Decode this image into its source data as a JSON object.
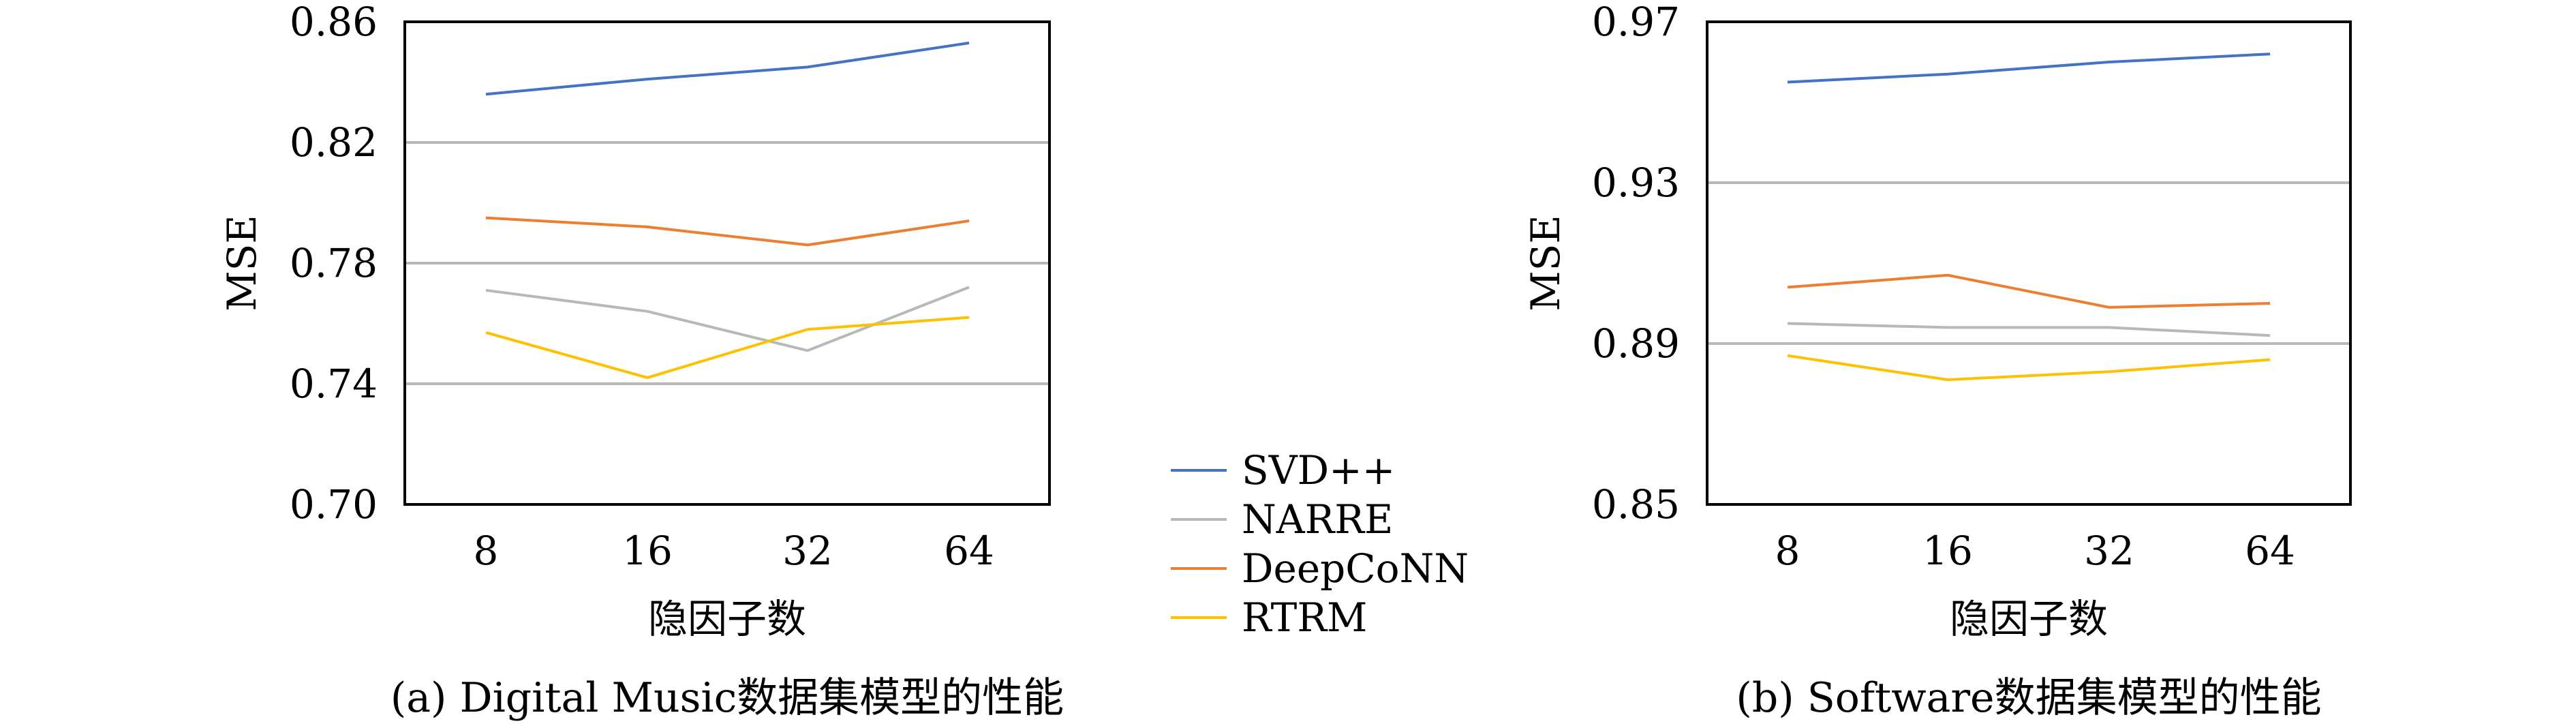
{
  "colors": {
    "svd": "#4472C4",
    "narre": "#B8B8B8",
    "deepconn": "#ED7D31",
    "rtrm": "#FFC000",
    "grid": "#B8B8B8",
    "frame": "#000000"
  },
  "legend": {
    "position": "center-between-charts",
    "items": [
      "SVD++",
      "NARRE",
      "DeepCoNN",
      "RTRM"
    ]
  },
  "chart_data": [
    {
      "type": "line",
      "caption": "(a) Digital Music数据集模型的性能",
      "xlabel": "隐因子数",
      "ylabel": "MSE",
      "categories": [
        "8",
        "16",
        "32",
        "64"
      ],
      "ylim": [
        0.7,
        0.86
      ],
      "yticks": [
        "0.70",
        "0.74",
        "0.78",
        "0.82",
        "0.86"
      ],
      "ytick_values": [
        0.7,
        0.74,
        0.78,
        0.82,
        0.86
      ],
      "grid": true,
      "series": [
        {
          "name": "SVD++",
          "color": "#4472C4",
          "values": [
            0.836,
            0.841,
            0.845,
            0.853
          ]
        },
        {
          "name": "NARRE",
          "color": "#B8B8B8",
          "values": [
            0.771,
            0.764,
            0.751,
            0.772
          ]
        },
        {
          "name": "DeepCoNN",
          "color": "#ED7D31",
          "values": [
            0.795,
            0.792,
            0.786,
            0.794
          ]
        },
        {
          "name": "RTRM",
          "color": "#FFC000",
          "values": [
            0.757,
            0.742,
            0.758,
            0.762
          ]
        }
      ]
    },
    {
      "type": "line",
      "caption": "(b) Software数据集模型的性能",
      "xlabel": "隐因子数",
      "ylabel": "MSE",
      "categories": [
        "8",
        "16",
        "32",
        "64"
      ],
      "ylim": [
        0.85,
        0.97
      ],
      "yticks": [
        "0.85",
        "0.89",
        "0.93",
        "0.97"
      ],
      "ytick_values": [
        0.85,
        0.89,
        0.93,
        0.97
      ],
      "grid": true,
      "series": [
        {
          "name": "SVD++",
          "color": "#4472C4",
          "values": [
            0.955,
            0.957,
            0.96,
            0.962
          ]
        },
        {
          "name": "NARRE",
          "color": "#B8B8B8",
          "values": [
            0.895,
            0.894,
            0.894,
            0.892
          ]
        },
        {
          "name": "DeepCoNN",
          "color": "#ED7D31",
          "values": [
            0.904,
            0.907,
            0.899,
            0.9
          ]
        },
        {
          "name": "RTRM",
          "color": "#FFC000",
          "values": [
            0.887,
            0.881,
            0.883,
            0.886
          ]
        }
      ]
    }
  ]
}
